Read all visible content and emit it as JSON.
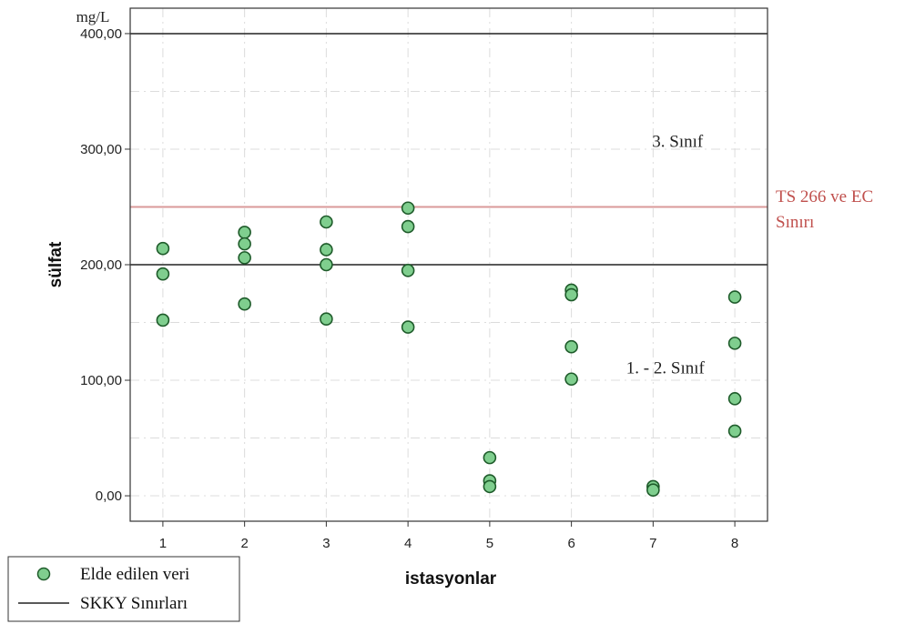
{
  "chart_data": {
    "type": "scatter",
    "xlabel": "istasyonlar",
    "ylabel": "sülfat",
    "unit_label": "mg/L",
    "xlim": [
      0.6,
      8.4
    ],
    "ylim": [
      -22,
      422
    ],
    "x_ticks": [
      1,
      2,
      3,
      4,
      5,
      6,
      7,
      8
    ],
    "y_ticks": [
      {
        "value": 0,
        "label": "0,00"
      },
      {
        "value": 100,
        "label": "100,00"
      },
      {
        "value": 200,
        "label": "200,00"
      },
      {
        "value": 300,
        "label": "300,00"
      },
      {
        "value": 400,
        "label": "400,00"
      }
    ],
    "grid": true,
    "series": [
      {
        "name": "Elde edilen veri",
        "color": "#7fce8e",
        "edge_color": "#1e5b2a",
        "points": [
          {
            "x": 1,
            "y": 214
          },
          {
            "x": 1,
            "y": 192
          },
          {
            "x": 1,
            "y": 152
          },
          {
            "x": 2,
            "y": 228
          },
          {
            "x": 2,
            "y": 218
          },
          {
            "x": 2,
            "y": 206
          },
          {
            "x": 2,
            "y": 166
          },
          {
            "x": 3,
            "y": 237
          },
          {
            "x": 3,
            "y": 213
          },
          {
            "x": 3,
            "y": 200
          },
          {
            "x": 3,
            "y": 153
          },
          {
            "x": 4,
            "y": 249
          },
          {
            "x": 4,
            "y": 233
          },
          {
            "x": 4,
            "y": 195
          },
          {
            "x": 4,
            "y": 146
          },
          {
            "x": 5,
            "y": 33
          },
          {
            "x": 5,
            "y": 13
          },
          {
            "x": 5,
            "y": 8
          },
          {
            "x": 6,
            "y": 178
          },
          {
            "x": 6,
            "y": 174
          },
          {
            "x": 6,
            "y": 129
          },
          {
            "x": 6,
            "y": 101
          },
          {
            "x": 7,
            "y": 8
          },
          {
            "x": 7,
            "y": 5
          },
          {
            "x": 8,
            "y": 172
          },
          {
            "x": 8,
            "y": 132
          },
          {
            "x": 8,
            "y": 84
          },
          {
            "x": 8,
            "y": 56
          }
        ]
      }
    ],
    "reference_lines": [
      {
        "name": "SKKY Sınırları",
        "y": 400,
        "color": "#222222"
      },
      {
        "name": "SKKY Sınırları",
        "y": 200,
        "color": "#222222"
      },
      {
        "name": "TS 266 ve EC Sınırı",
        "y": 250,
        "color": "#d99a9a"
      }
    ],
    "annotations": [
      {
        "text": "3. Sınıf",
        "x": 7.3,
        "y": 302
      },
      {
        "text": "1. - 2. Sınıf",
        "x": 7.15,
        "y": 106
      }
    ],
    "limit_label": {
      "line1": "TS 266 ve EC",
      "line2": "Sınırı",
      "color": "#c0504d"
    },
    "legend": {
      "position": "bottom-left",
      "items": [
        {
          "label": "Elde edilen veri",
          "kind": "marker"
        },
        {
          "label": "SKKY Sınırları",
          "kind": "line"
        }
      ]
    }
  }
}
